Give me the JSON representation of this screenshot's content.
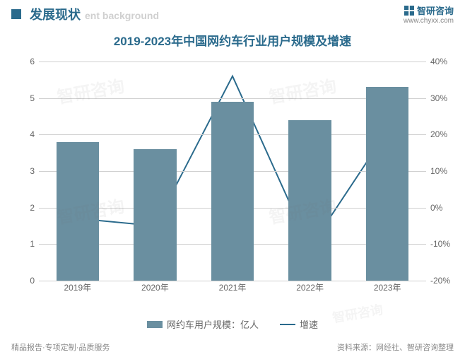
{
  "header": {
    "title_cn": "发展现状",
    "title_en": "ent background",
    "brand": "智研咨询",
    "url": "www.chyxx.com"
  },
  "chart": {
    "title": "2019-2023年中国网约车行业用户规模及增速",
    "type": "bar+line",
    "categories": [
      "2019年",
      "2020年",
      "2021年",
      "2022年",
      "2023年"
    ],
    "bar_series": {
      "name": "网约车用户规模：亿人",
      "values": [
        3.8,
        3.6,
        4.9,
        4.4,
        5.3
      ],
      "color": "#6a8fa0"
    },
    "line_series": {
      "name": "增速",
      "values": [
        -3,
        -5,
        36,
        -11,
        21
      ],
      "color": "#2a6a8c",
      "line_width": 2
    },
    "y_left": {
      "min": 0,
      "max": 6,
      "ticks": [
        0,
        1,
        2,
        3,
        4,
        5,
        6
      ]
    },
    "y_right": {
      "min": -20,
      "max": 40,
      "ticks": [
        -20,
        -10,
        0,
        10,
        20,
        30,
        40
      ],
      "suffix": "%"
    },
    "bar_width_ratio": 0.55,
    "grid_color": "#d0d0d0",
    "background": "#ffffff",
    "label_fontsize": 12,
    "title_fontsize": 17
  },
  "legend": {
    "bar": "网约车用户规模：亿人",
    "line": "增速"
  },
  "footer": {
    "left": "精品报告·专项定制·品质服务",
    "right": "资料来源：网经社、智研咨询整理"
  },
  "watermark": "智研咨询"
}
